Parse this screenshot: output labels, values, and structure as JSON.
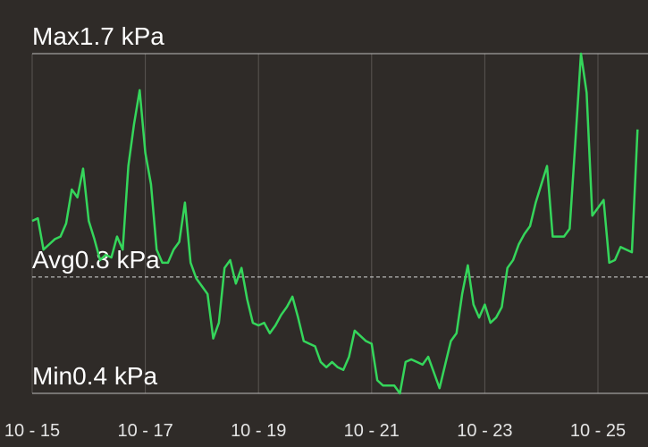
{
  "chart_data": {
    "type": "line",
    "categories": [
      "10 - 15",
      null,
      null,
      null,
      null,
      null,
      null,
      null,
      null,
      null,
      null,
      null,
      null,
      null,
      null,
      null,
      null,
      null,
      null,
      null,
      "10 - 17",
      null,
      null,
      null,
      null,
      null,
      null,
      null,
      null,
      null,
      null,
      null,
      null,
      null,
      null,
      null,
      null,
      null,
      null,
      null,
      "10 - 19",
      null,
      null,
      null,
      null,
      null,
      null,
      null,
      null,
      null,
      null,
      null,
      null,
      null,
      null,
      null,
      null,
      null,
      null,
      null,
      "10 - 21",
      null,
      null,
      null,
      null,
      null,
      null,
      null,
      null,
      null,
      null,
      null,
      null,
      null,
      null,
      null,
      null,
      null,
      null,
      null,
      "10 - 23",
      null,
      null,
      null,
      null,
      null,
      null,
      null,
      null,
      null,
      null,
      null,
      null,
      null,
      null,
      null,
      null,
      null,
      null,
      null,
      "10 - 25",
      null,
      null,
      null,
      null,
      null,
      null,
      null
    ],
    "series": [
      {
        "color": "#35d65b",
        "values": [
          1.06,
          1.07,
          0.95,
          0.97,
          0.99,
          1.0,
          1.05,
          1.18,
          1.15,
          1.26,
          1.06,
          0.99,
          0.91,
          0.93,
          0.92,
          1.0,
          0.95,
          1.27,
          1.43,
          1.56,
          1.32,
          1.2,
          0.95,
          0.9,
          0.9,
          0.95,
          0.98,
          1.13,
          0.9,
          0.84,
          0.81,
          0.78,
          0.61,
          0.67,
          0.88,
          0.91,
          0.82,
          0.88,
          0.76,
          0.67,
          0.66,
          0.67,
          0.63,
          0.66,
          0.7,
          0.73,
          0.77,
          0.69,
          0.6,
          0.59,
          0.58,
          0.52,
          0.5,
          0.52,
          0.5,
          0.49,
          0.54,
          0.64,
          0.62,
          0.6,
          0.59,
          0.45,
          0.43,
          0.43,
          0.43,
          0.4,
          0.52,
          0.53,
          0.52,
          0.51,
          0.54,
          0.48,
          0.42,
          0.51,
          0.6,
          0.63,
          0.78,
          0.89,
          0.74,
          0.69,
          0.74,
          0.67,
          0.69,
          0.73,
          0.88,
          0.91,
          0.97,
          1.01,
          1.04,
          1.13,
          1.2,
          1.27,
          1.0,
          1.0,
          1.0,
          1.03,
          1.36,
          1.7,
          1.55,
          1.08,
          1.11,
          1.14,
          0.9,
          0.91,
          0.96,
          0.95,
          0.94,
          1.41
        ]
      }
    ],
    "ylim": [
      0.4,
      1.7
    ],
    "reference_lines": [
      {
        "label": "Max1.7 kPa",
        "value": 1.7,
        "dashed": false
      },
      {
        "label": "Avg0.8 kPa",
        "value": 0.845,
        "dashed": true
      },
      {
        "label": "Min0.4 kPa",
        "value": 0.4,
        "dashed": false
      }
    ],
    "grid": true
  }
}
